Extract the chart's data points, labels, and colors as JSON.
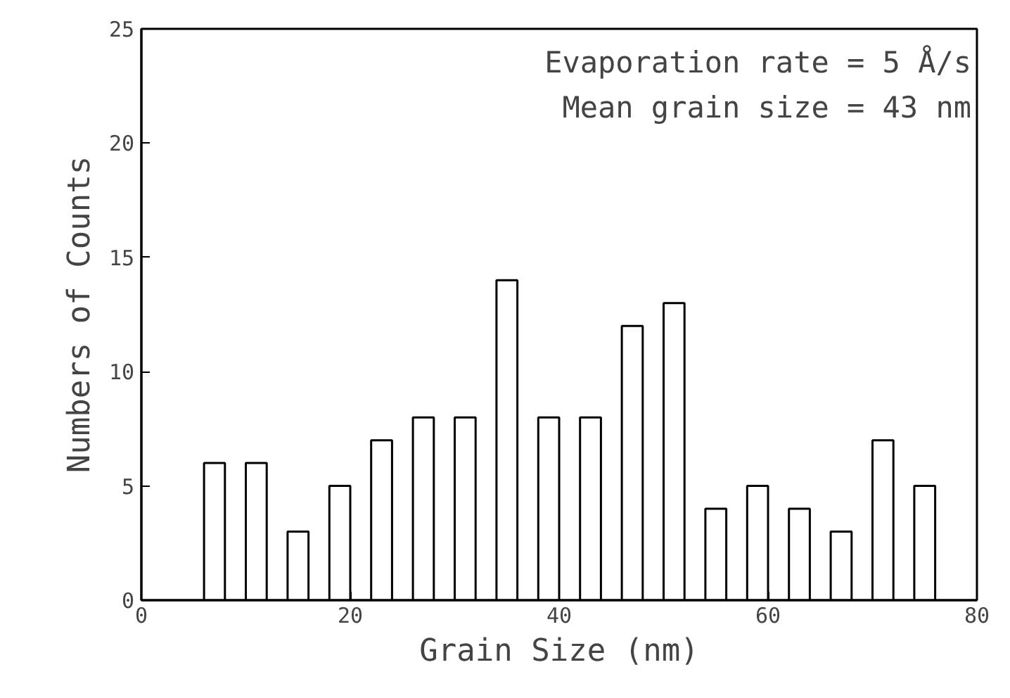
{
  "chart_data": {
    "type": "bar",
    "xlabel": "Grain Size (nm)",
    "ylabel": "Numbers of Counts",
    "x": [
      7,
      11,
      15,
      19,
      23,
      27,
      31,
      35,
      39,
      43,
      47,
      51,
      55,
      59,
      63,
      67,
      71,
      75
    ],
    "values": [
      6,
      6,
      3,
      5,
      7,
      8,
      8,
      14,
      8,
      8,
      12,
      13,
      4,
      5,
      4,
      3,
      7,
      5
    ],
    "color": "#000000",
    "xlim": [
      0,
      80
    ],
    "xticks": [
      0,
      20,
      40,
      60,
      80
    ],
    "ylim": [
      0,
      25
    ],
    "yticks": [
      0,
      5,
      10,
      15,
      20,
      25
    ],
    "annotations": [
      "Evaporation rate = 5 Å/s",
      "Mean grain size = 43 nm"
    ],
    "grid": false
  }
}
